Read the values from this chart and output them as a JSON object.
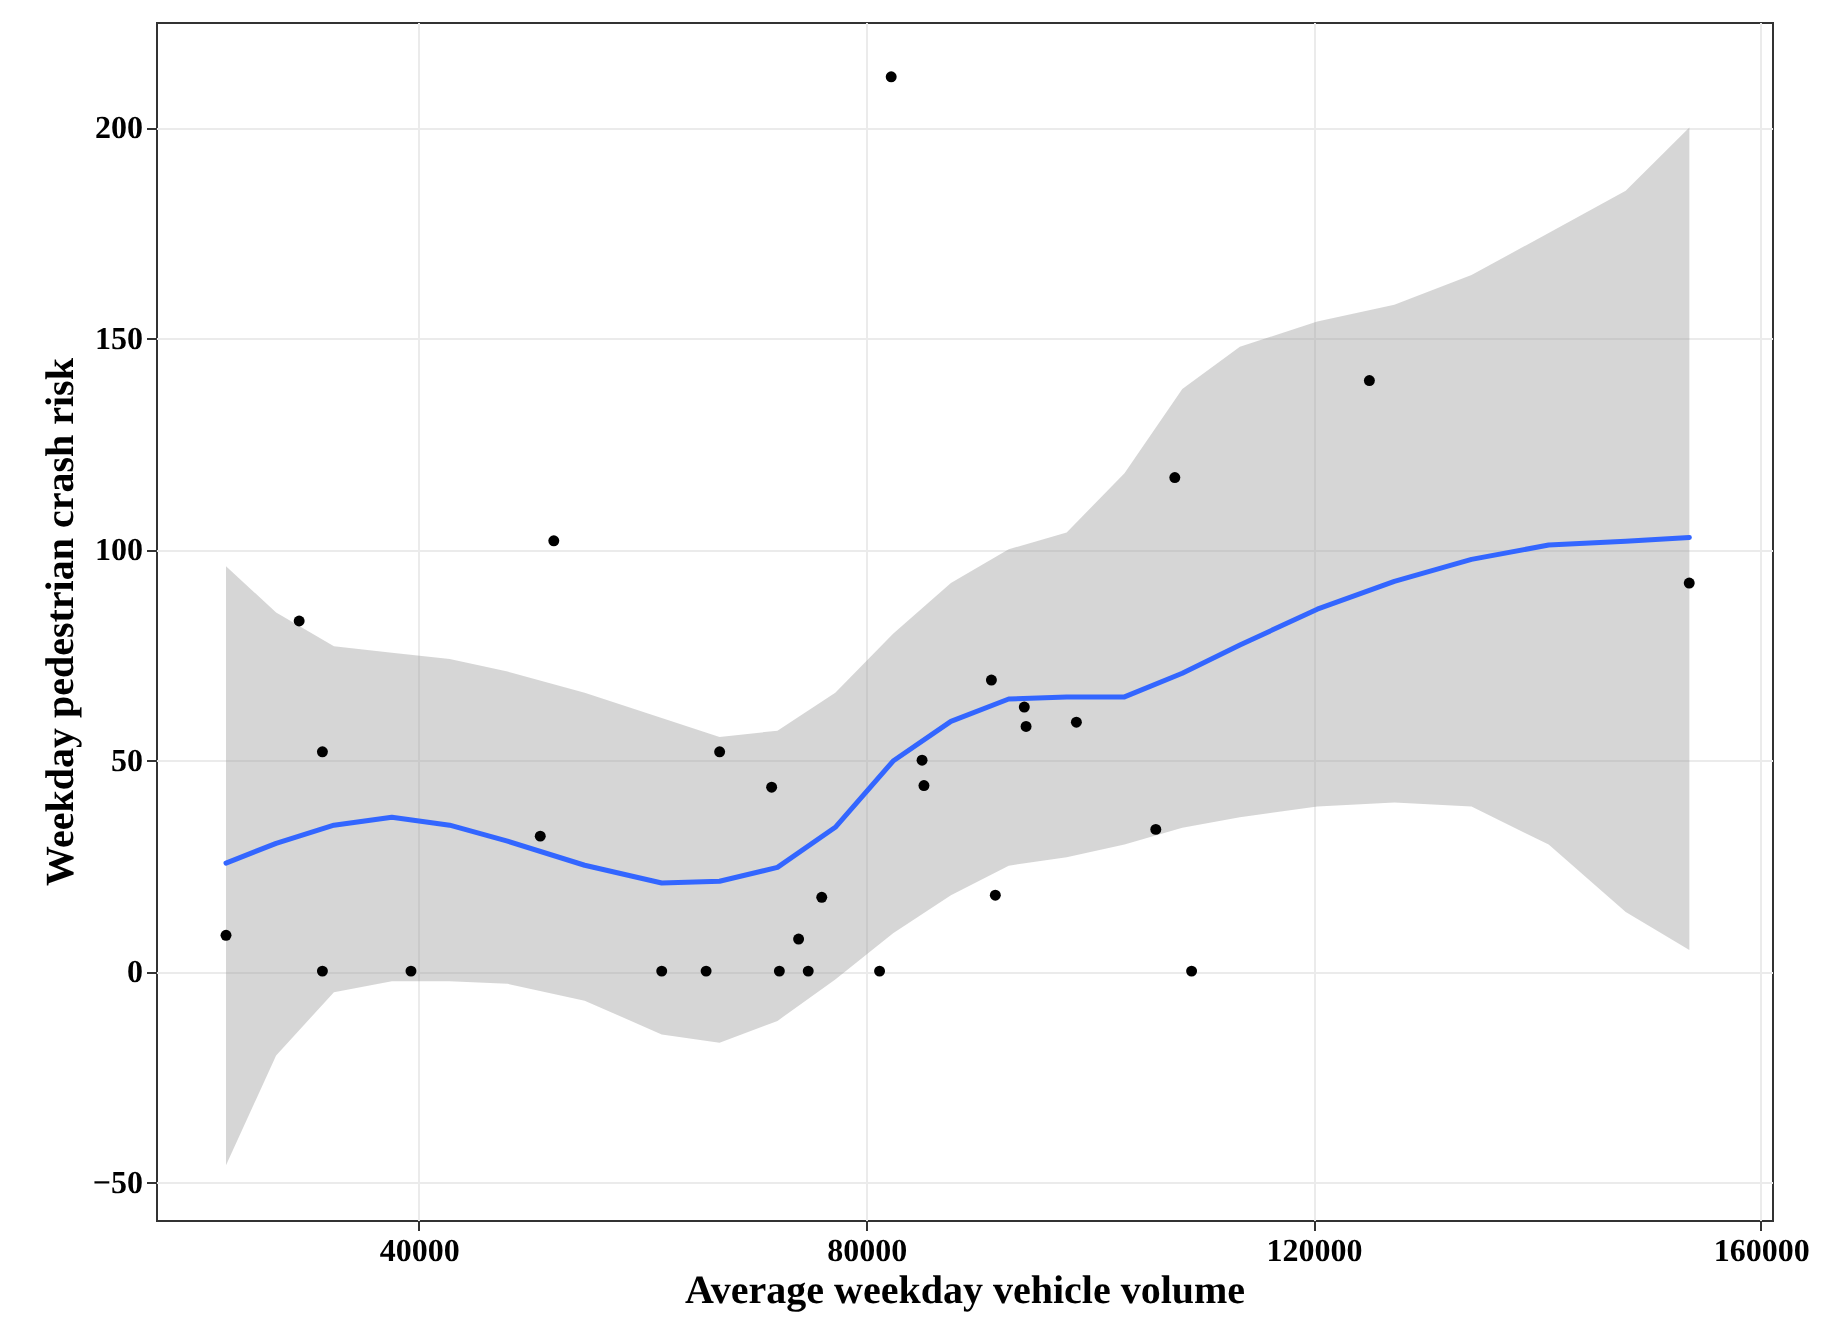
{
  "chart_data": {
    "type": "scatter",
    "xlabel": "Average weekday vehicle volume",
    "ylabel": "Weekday pedestrian crash risk",
    "xlim": [
      16500,
      161000
    ],
    "xticks": [
      40000,
      80000,
      120000,
      160000
    ],
    "ylim": [
      -59,
      225
    ],
    "yticks": [
      -50,
      0,
      50,
      100,
      150,
      200
    ],
    "grid": true,
    "series": [
      {
        "type": "line",
        "color": "#3366ff",
        "line_style": "solid",
        "marker": "none",
        "x": [
          22760,
          27240,
          32410,
          37590,
          42760,
          47930,
          54830,
          61720,
          66890,
          72070,
          77240,
          82410,
          87580,
          92750,
          97930,
          103100,
          108270,
          113420,
          120340,
          127230,
          134130,
          141030,
          147920,
          153610
        ],
        "values": [
          25.6,
          30.3,
          34.6,
          36.5,
          34.6,
          30.8,
          25.1,
          20.9,
          21.3,
          24.6,
          34.1,
          49.8,
          59.2,
          64.5,
          65,
          65,
          70.6,
          77.3,
          85.8,
          92.4,
          97.6,
          101,
          101.9,
          102.8
        ],
        "lower": [
          -46,
          -20,
          -5,
          -2.4,
          -2.4,
          -3,
          -7,
          -15,
          -17,
          -11.8,
          -2,
          9,
          18,
          25,
          27,
          30,
          34,
          36.5,
          39,
          40,
          39,
          30,
          14,
          5
        ],
        "upper": [
          96,
          85,
          77,
          75.5,
          74,
          71,
          66,
          60,
          55.5,
          57,
          66,
          80,
          92,
          100,
          104,
          118,
          138,
          148,
          154,
          158,
          165,
          175,
          185,
          200
        ]
      },
      {
        "type": "scatter",
        "color": "#000000",
        "marker": "circle",
        "x": [
          22760,
          29300,
          31380,
          31380,
          39300,
          50860,
          52070,
          66900,
          71550,
          61720,
          65690,
          72240,
          73960,
          74820,
          76030,
          81200,
          85000,
          85170,
          91200,
          91550,
          94140,
          94300,
          98800,
          105900,
          109100,
          153600,
          107600,
          125000,
          82240
        ],
        "values": [
          8.5,
          83,
          52,
          0,
          0,
          32,
          102,
          52,
          43.6,
          0,
          0,
          0,
          7.6,
          0,
          17.5,
          0,
          50,
          44,
          69,
          18,
          62.6,
          58,
          59,
          33.6,
          0,
          92,
          117,
          140,
          212
        ]
      }
    ]
  }
}
